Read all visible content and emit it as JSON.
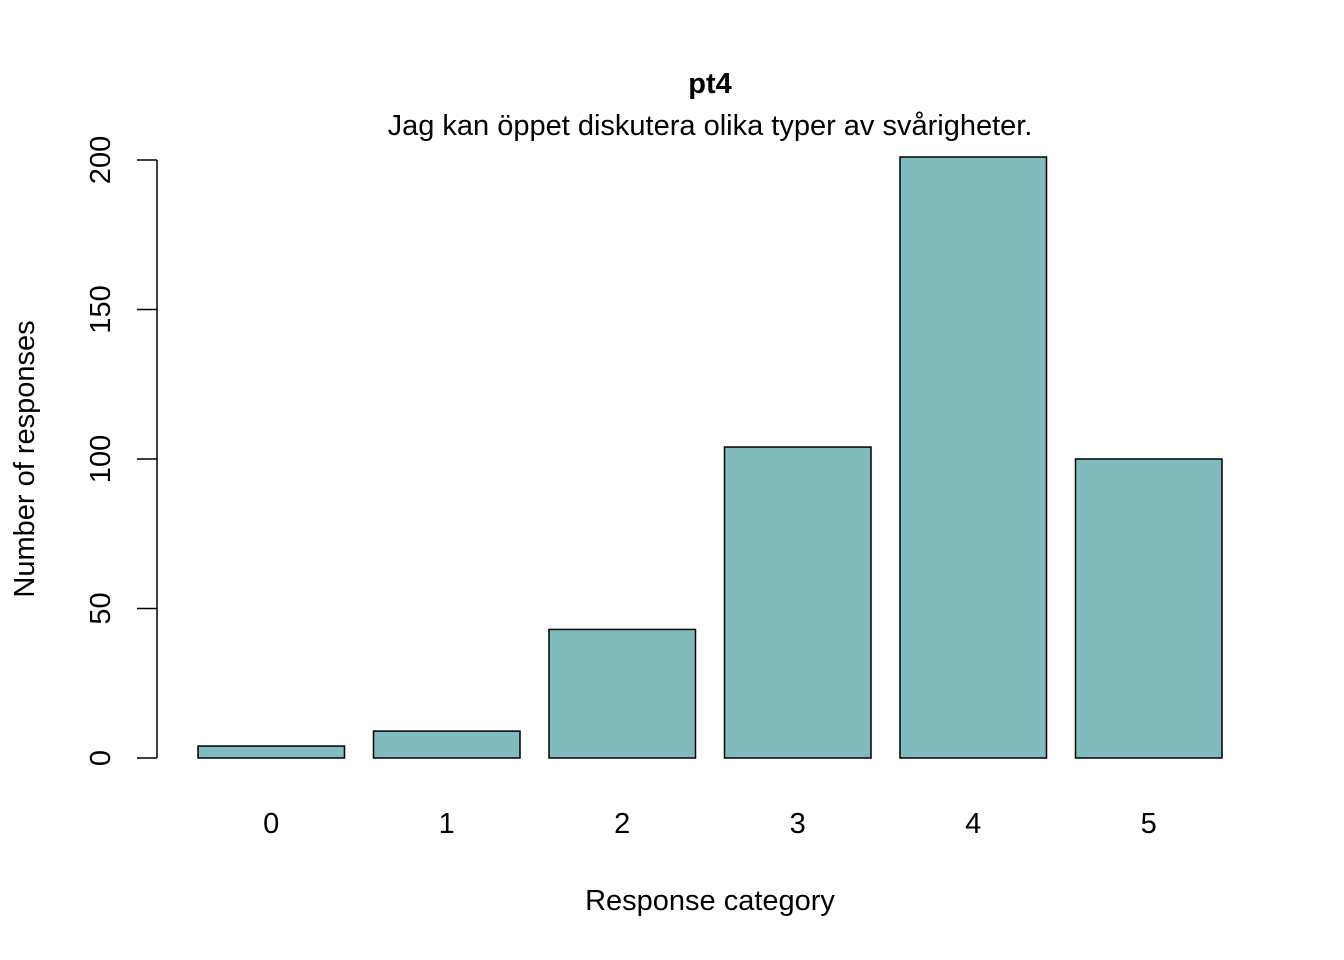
{
  "chart_data": {
    "type": "bar",
    "title": "pt4",
    "subtitle": "Jag kan öppet diskutera olika typer av svårigheter.",
    "xlabel": "Response category",
    "ylabel": "Number of responses",
    "categories": [
      "0",
      "1",
      "2",
      "3",
      "4",
      "5"
    ],
    "values": [
      4,
      9,
      43,
      104,
      201,
      100
    ],
    "ylim": [
      0,
      200
    ],
    "yticks": [
      "0",
      "50",
      "100",
      "150",
      "200"
    ],
    "bar_color": "#80BCBC",
    "grid": false,
    "legend": "none"
  }
}
